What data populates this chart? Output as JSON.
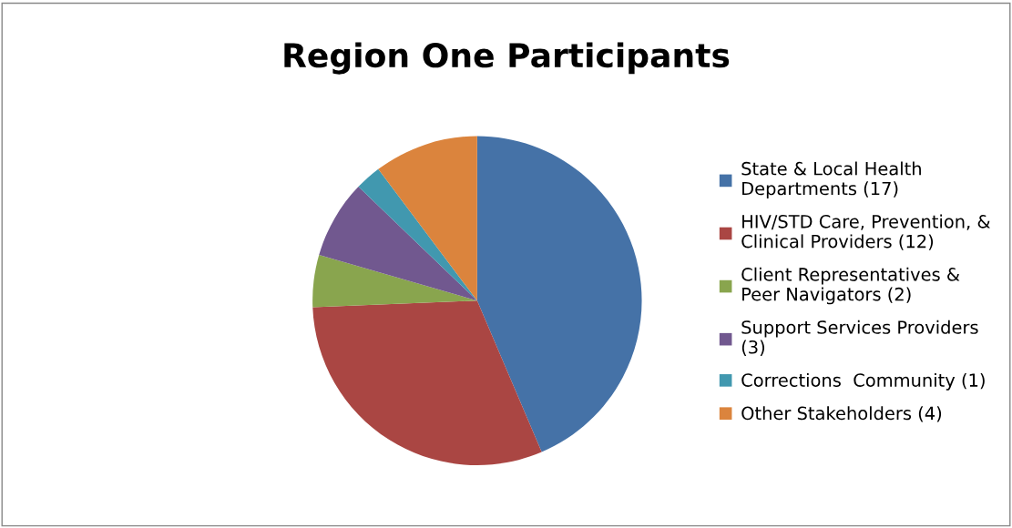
{
  "chart_data": {
    "type": "pie",
    "title": "Region One Participants",
    "categories": [
      "State & Local Health Departments (17)",
      "HIV/STD Care, Prevention, & Clinical Providers (12)",
      "Client Representatives & Peer Navigators (2)",
      "Support Services Providers (3)",
      "Corrections  Community (1)",
      "Other Stakeholders (4)"
    ],
    "values": [
      17,
      12,
      2,
      3,
      1,
      4
    ],
    "colors": [
      "#4572a7",
      "#aa4643",
      "#89a54e",
      "#71588f",
      "#4198af",
      "#db843d"
    ],
    "legend": "right"
  }
}
